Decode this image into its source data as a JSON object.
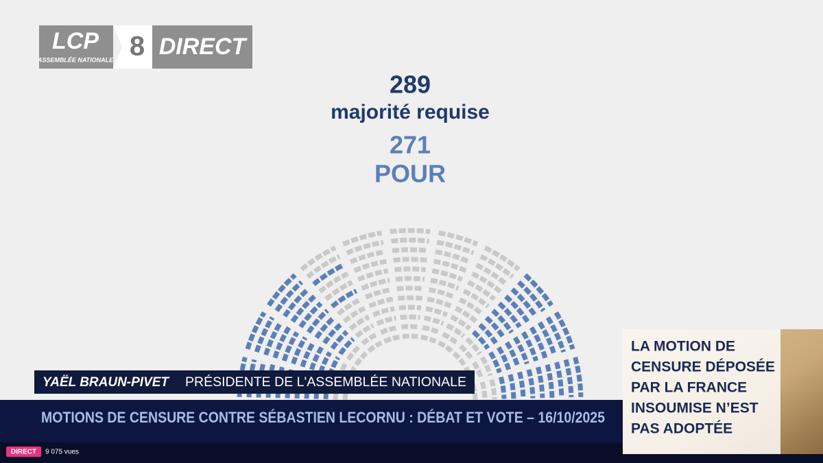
{
  "logo": {
    "brand": "LCP",
    "subtitle": "ASSEMBLÉE NATIONALE",
    "channel": "8",
    "status": "DIRECT"
  },
  "result": {
    "required": "289",
    "required_label": "majorité requise",
    "for": "271",
    "for_label": "POUR"
  },
  "speaker": {
    "name": "YAËL BRAUN-PIVET",
    "role": "PRÉSIDENTE DE L'ASSEMBLÉE NATIONALE"
  },
  "banner": "MOTIONS DE CENSURE CONTRE SÉBASTIEN LECORNU : DÉBAT ET VOTE – 16/10/2025",
  "panel": {
    "lines": [
      "LA MOTION DE",
      "CENSURE DÉPOSÉE",
      "PAR LA FRANCE",
      "INSOUMISE N’EST",
      "PAS ADOPTÉE"
    ]
  },
  "player": {
    "live": "DIRECT",
    "views": "9 075 vues"
  }
}
